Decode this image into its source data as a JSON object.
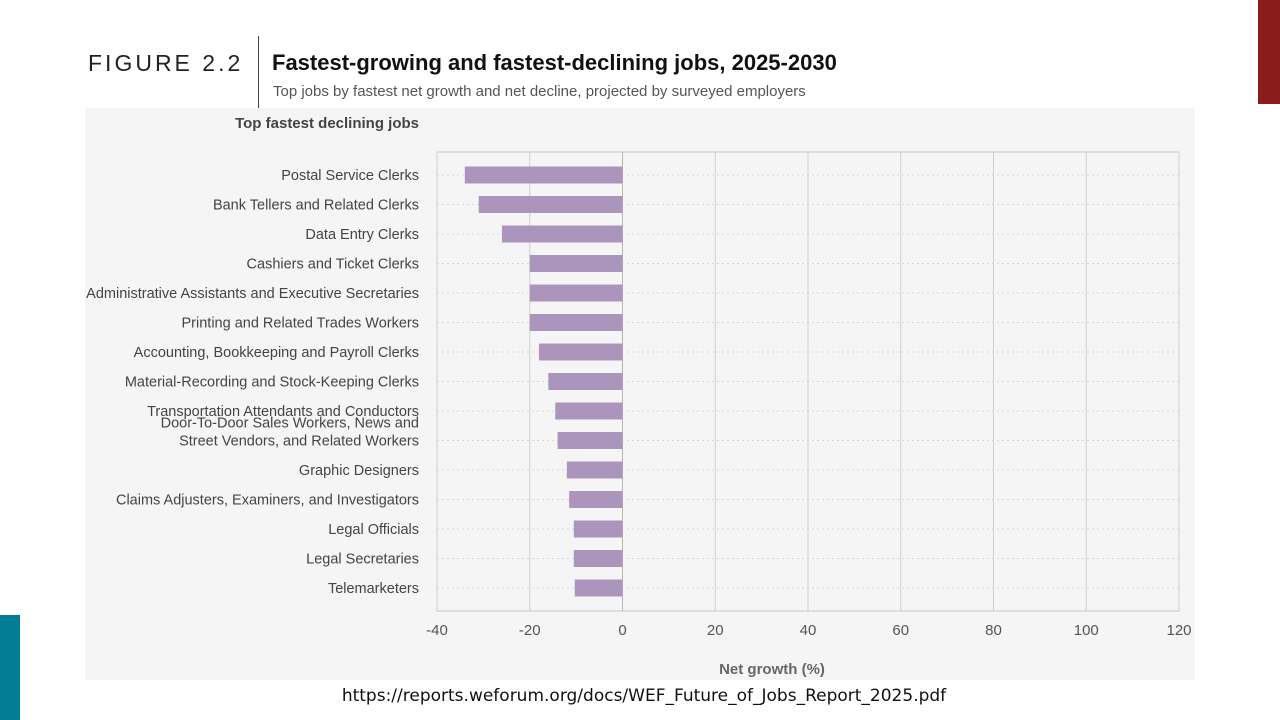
{
  "figure": {
    "label": "FIGURE 2.2",
    "title": "Fastest-growing and fastest-declining jobs, 2025-2030",
    "subtitle": "Top jobs by fastest net growth and net decline, projected by surveyed employers"
  },
  "source": {
    "url": "https://reports.weforum.org/docs/WEF_Future_of_Jobs_Report_2025.pdf"
  },
  "colors": {
    "bar": "#ab95bd",
    "accent_red": "#8b1c1c",
    "accent_teal": "#007d94",
    "panel": "#f5f5f5"
  },
  "chart_data": {
    "type": "bar",
    "orientation": "horizontal",
    "section_label": "Top fastest declining jobs",
    "categories": [
      "Postal Service Clerks",
      "Bank Tellers and Related Clerks",
      "Data Entry Clerks",
      "Cashiers and Ticket Clerks",
      "Administrative Assistants and Executive Secretaries",
      "Printing and Related Trades Workers",
      "Accounting, Bookkeeping and Payroll Clerks",
      "Material-Recording and Stock-Keeping Clerks",
      "Transportation Attendants and Conductors",
      "Door-To-Door Sales Workers, News and Street Vendors, and Related Workers",
      "Graphic Designers",
      "Claims Adjusters, Examiners, and Investigators",
      "Legal Officials",
      "Legal Secretaries",
      "Telemarketers"
    ],
    "category_lines": [
      [
        "Postal Service Clerks"
      ],
      [
        "Bank Tellers and Related Clerks"
      ],
      [
        "Data Entry Clerks"
      ],
      [
        "Cashiers and Ticket Clerks"
      ],
      [
        "Administrative Assistants and Executive Secretaries"
      ],
      [
        "Printing and Related Trades Workers"
      ],
      [
        "Accounting, Bookkeeping and Payroll Clerks"
      ],
      [
        "Material-Recording and Stock-Keeping Clerks"
      ],
      [
        "Transportation Attendants and Conductors"
      ],
      [
        "Door-To-Door Sales Workers, News and",
        "Street Vendors, and Related Workers"
      ],
      [
        "Graphic Designers"
      ],
      [
        "Claims Adjusters, Examiners, and Investigators"
      ],
      [
        "Legal Officials"
      ],
      [
        "Legal Secretaries"
      ],
      [
        "Telemarketers"
      ]
    ],
    "values": [
      -34,
      -31,
      -26,
      -20,
      -20,
      -20,
      -18,
      -16,
      -14.5,
      -14,
      -12,
      -11.5,
      -10.5,
      -10.5,
      -10.3
    ],
    "xlabel": "Net growth (%)",
    "ylabel": "",
    "xlim": [
      -40,
      120
    ],
    "xticks": [
      -40,
      -20,
      0,
      20,
      40,
      60,
      80,
      100,
      120
    ],
    "grid": true
  }
}
